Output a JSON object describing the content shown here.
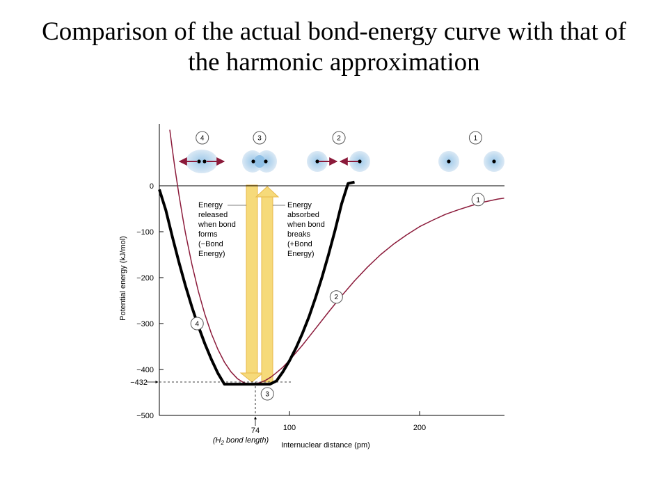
{
  "title_line1": "Comparison of the actual bond-energy curve with that of",
  "title_line2": "the harmonic approximation",
  "chart_data": {
    "type": "line",
    "xlabel": "Internuclear distance (pm)",
    "ylabel": "Potential energy (kJ/mol)",
    "xlim": [
      0,
      265
    ],
    "ylim": [
      -500,
      120
    ],
    "y_ticks": [
      "0",
      "−100",
      "−200",
      "−300",
      "−400",
      "−500"
    ],
    "y_tick_values": [
      0,
      -100,
      -200,
      -300,
      -400,
      -500
    ],
    "x_ticks": [
      "100",
      "200"
    ],
    "x_tick_values": [
      100,
      200
    ],
    "minimum_y_label": "−432",
    "minimum_x_label": "74",
    "minimum_x_note": [
      "(H",
      "2",
      " bond length)"
    ],
    "minimum": {
      "x": 74,
      "y": -432
    },
    "series": [
      {
        "color": "#8b1a3a",
        "x": [
          8,
          10,
          12,
          15,
          18,
          20,
          25,
          30,
          35,
          40,
          45,
          50,
          55,
          60,
          65,
          70,
          74,
          78,
          82,
          86,
          90,
          95,
          100,
          110,
          120,
          130,
          140,
          150,
          160,
          170,
          180,
          190,
          200,
          210,
          220,
          230,
          240,
          250,
          260,
          265
        ],
        "y": [
          122,
          79,
          38,
          -19,
          -70,
          -102,
          -171,
          -230,
          -280,
          -322,
          -356,
          -384,
          -405,
          -420,
          -429,
          -432,
          -431,
          -428,
          -423,
          -416,
          -407,
          -395,
          -380,
          -347,
          -311,
          -275,
          -240,
          -207,
          -177,
          -150,
          -127,
          -107,
          -89,
          -75,
          -62,
          -52,
          -43,
          -35,
          -29,
          -27
        ]
      },
      {
        "color": "#000000",
        "x": [
          0,
          5,
          10,
          15,
          20,
          25,
          30,
          35,
          40,
          45,
          50,
          55,
          60,
          65,
          70,
          74,
          78,
          82,
          85,
          90,
          95,
          100,
          105,
          110,
          115,
          120,
          125,
          130,
          135,
          140,
          145,
          150
        ],
        "y": [
          -8,
          -53,
          -111,
          -166,
          -217,
          -264,
          -306,
          -344,
          -378,
          -408,
          -432,
          -432,
          -432,
          -432,
          -432,
          -432,
          -432,
          -432,
          -432,
          -425,
          -405,
          -381,
          -353,
          -321,
          -285,
          -244,
          -199,
          -150,
          -97,
          -40,
          5,
          8
        ]
      }
    ],
    "markers": [
      {
        "label": "1",
        "x": 245,
        "y": -30
      },
      {
        "label": "2",
        "x": 136,
        "y": -242
      },
      {
        "label": "3",
        "x": 83,
        "y": -453
      },
      {
        "label": "4",
        "x": 29,
        "y": -300
      }
    ],
    "energy_released_lines": [
      "Energy",
      "released",
      "when bond",
      "forms",
      "(−Bond",
      "Energy)"
    ],
    "energy_absorbed_lines": [
      "Energy",
      "absorbed",
      "when bond",
      "breaks",
      "(+Bond",
      "Energy)"
    ],
    "molecule_stages": [
      {
        "label": "4",
        "x": 33
      },
      {
        "label": "3",
        "x": 77
      },
      {
        "label": "2",
        "x": 138
      },
      {
        "label": "1",
        "x": 243
      }
    ]
  }
}
